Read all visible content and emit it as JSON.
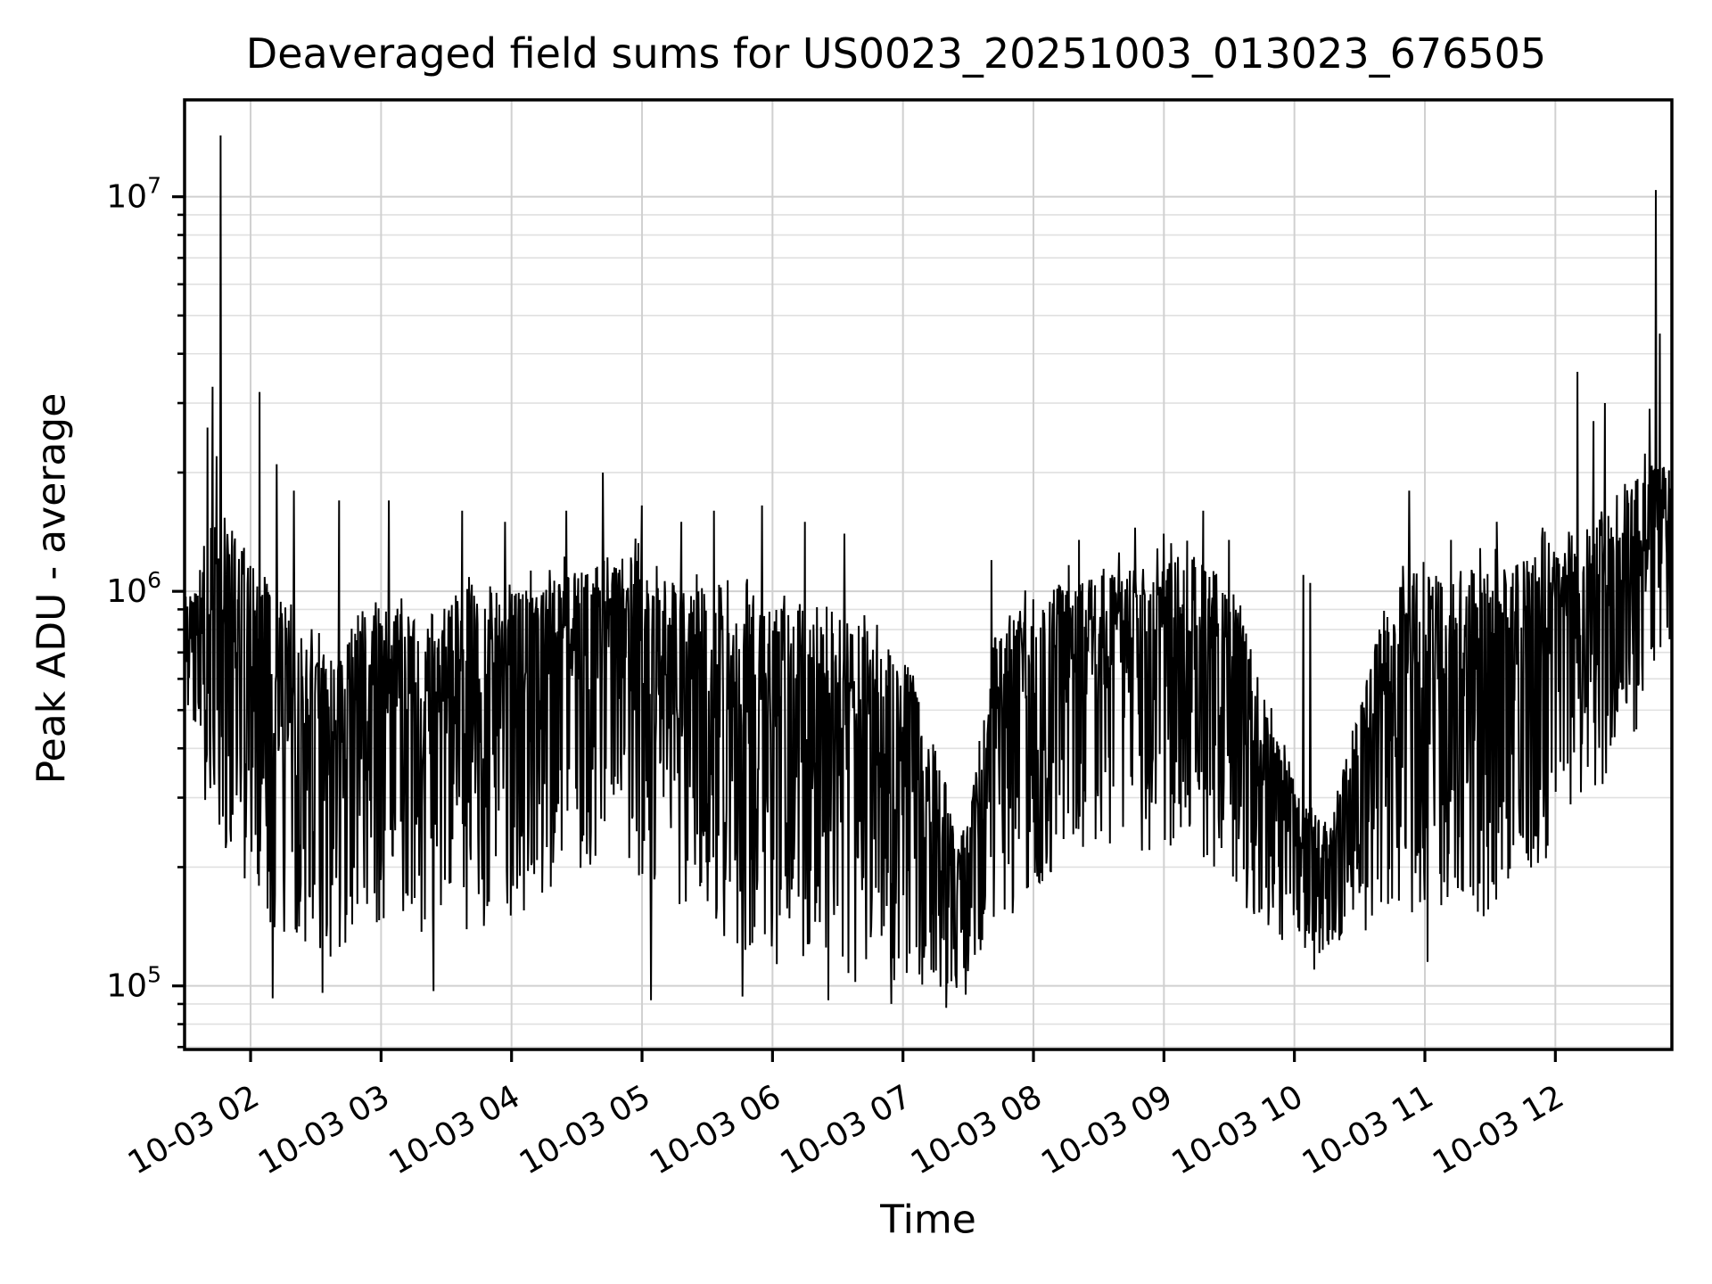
{
  "chart_data": {
    "type": "line",
    "title": "Deaveraged field sums for US0023_20251003_013023_676505",
    "xlabel": "Time",
    "ylabel": "Peak ADU - average",
    "line_color": "#000000",
    "background_color": "#ffffff",
    "grid": {
      "shown": true,
      "which": "both",
      "major_color": "#d0d0d0",
      "minor_color": "#e0e0e0"
    },
    "x_axis": {
      "tick_rotation_deg": 30,
      "ticks": [
        {
          "label": "10-03 02",
          "hour": 2
        },
        {
          "label": "10-03 03",
          "hour": 3
        },
        {
          "label": "10-03 04",
          "hour": 4
        },
        {
          "label": "10-03 05",
          "hour": 5
        },
        {
          "label": "10-03 06",
          "hour": 6
        },
        {
          "label": "10-03 07",
          "hour": 7
        },
        {
          "label": "10-03 08",
          "hour": 8
        },
        {
          "label": "10-03 09",
          "hour": 9
        },
        {
          "label": "10-03 10",
          "hour": 10
        },
        {
          "label": "10-03 11",
          "hour": 11
        },
        {
          "label": "10-03 12",
          "hour": 12
        }
      ]
    },
    "y_axis": {
      "scale": "log",
      "ticks": [
        {
          "base": "10",
          "exp": "5",
          "value": 100000.0
        },
        {
          "base": "10",
          "exp": "6",
          "value": 1000000.0
        },
        {
          "base": "10",
          "exp": "7",
          "value": 10000000.0
        }
      ]
    },
    "xlim_hours": [
      1.494,
      12.893
    ],
    "ylim": [
      69000.0,
      17600000.0
    ],
    "envelope_points": [
      [
        1.49,
        550000.0,
        950000.0
      ],
      [
        1.58,
        450000.0,
        1000000.0
      ],
      [
        1.66,
        280000.0,
        1500000.0
      ],
      [
        1.8,
        220000.0,
        1600000.0
      ],
      [
        1.95,
        180000.0,
        1300000.0
      ],
      [
        2.1,
        150000.0,
        1100000.0
      ],
      [
        2.25,
        120000.0,
        900000.0
      ],
      [
        2.45,
        110000.0,
        750000.0
      ],
      [
        2.65,
        120000.0,
        700000.0
      ],
      [
        2.85,
        140000.0,
        900000.0
      ],
      [
        3.1,
        150000.0,
        1000000.0
      ],
      [
        3.35,
        130000.0,
        850000.0
      ],
      [
        3.6,
        130000.0,
        1000000.0
      ],
      [
        3.85,
        140000.0,
        1100000.0
      ],
      [
        4.1,
        150000.0,
        1000000.0
      ],
      [
        4.35,
        180000.0,
        1100000.0
      ],
      [
        4.6,
        200000.0,
        1200000.0
      ],
      [
        4.85,
        200000.0,
        1250000.0
      ],
      [
        5.1,
        180000.0,
        1200000.0
      ],
      [
        5.35,
        150000.0,
        1050000.0
      ],
      [
        5.6,
        130000.0,
        950000.0
      ],
      [
        5.85,
        120000.0,
        1000000.0
      ],
      [
        6.1,
        110000.0,
        950000.0
      ],
      [
        6.35,
        105000.0,
        850000.0
      ],
      [
        6.6,
        100000.0,
        850000.0
      ],
      [
        6.85,
        100000.0,
        750000.0
      ],
      [
        7.05,
        100000.0,
        650000.0
      ],
      [
        7.25,
        95000.0,
        450000.0
      ],
      [
        7.42,
        95000.0,
        220000.0
      ],
      [
        7.55,
        110000.0,
        350000.0
      ],
      [
        7.7,
        130000.0,
        800000.0
      ],
      [
        7.95,
        170000.0,
        950000.0
      ],
      [
        8.2,
        200000.0,
        1050000.0
      ],
      [
        8.45,
        220000.0,
        1100000.0
      ],
      [
        8.7,
        220000.0,
        1150000.0
      ],
      [
        8.95,
        220000.0,
        1200000.0
      ],
      [
        9.2,
        220000.0,
        1250000.0
      ],
      [
        9.45,
        190000.0,
        1150000.0
      ],
      [
        9.65,
        150000.0,
        750000.0
      ],
      [
        9.85,
        130000.0,
        450000.0
      ],
      [
        10.05,
        120000.0,
        300000.0
      ],
      [
        10.25,
        120000.0,
        260000.0
      ],
      [
        10.45,
        130000.0,
        450000.0
      ],
      [
        10.65,
        140000.0,
        850000.0
      ],
      [
        10.85,
        150000.0,
        1150000.0
      ],
      [
        11.1,
        160000.0,
        1100000.0
      ],
      [
        11.35,
        150000.0,
        1150000.0
      ],
      [
        11.6,
        150000.0,
        1200000.0
      ],
      [
        11.85,
        180000.0,
        1250000.0
      ],
      [
        12.1,
        280000.0,
        1350000.0
      ],
      [
        12.35,
        320000.0,
        1600000.0
      ],
      [
        12.6,
        400000.0,
        1900000.0
      ],
      [
        12.75,
        550000.0,
        2200000.0
      ],
      [
        12.89,
        700000.0,
        2000000.0
      ]
    ],
    "spikes": [
      [
        1.67,
        2600000.0
      ],
      [
        1.71,
        3300000.0
      ],
      [
        1.74,
        2200000.0
      ],
      [
        1.77,
        14300000.0
      ],
      [
        2.07,
        3200000.0
      ],
      [
        2.2,
        2100000.0
      ],
      [
        2.33,
        1800000.0
      ],
      [
        2.68,
        1700000.0
      ],
      [
        3.06,
        1700000.0
      ],
      [
        3.62,
        1600000.0
      ],
      [
        3.95,
        1500000.0
      ],
      [
        4.42,
        1600000.0
      ],
      [
        4.7,
        2000000.0
      ],
      [
        5.0,
        1650000.0
      ],
      [
        5.3,
        1500000.0
      ],
      [
        5.55,
        1600000.0
      ],
      [
        5.92,
        1650000.0
      ],
      [
        6.25,
        1500000.0
      ],
      [
        6.55,
        1400000.0
      ],
      [
        7.68,
        1200000.0
      ],
      [
        8.35,
        1350000.0
      ],
      [
        8.78,
        1450000.0
      ],
      [
        9.0,
        1400000.0
      ],
      [
        9.3,
        1600000.0
      ],
      [
        9.5,
        1350000.0
      ],
      [
        10.07,
        1100000.0
      ],
      [
        10.12,
        1050000.0
      ],
      [
        10.88,
        1800000.0
      ],
      [
        11.2,
        1350000.0
      ],
      [
        11.55,
        1500000.0
      ],
      [
        11.9,
        1450000.0
      ],
      [
        12.17,
        3600000.0
      ],
      [
        12.29,
        2700000.0
      ],
      [
        12.38,
        3000000.0
      ],
      [
        12.72,
        2900000.0
      ],
      [
        12.77,
        10400000.0
      ],
      [
        12.8,
        4500000.0
      ]
    ],
    "dips": [
      [
        2.17,
        93000.0
      ],
      [
        2.55,
        96000.0
      ],
      [
        3.4,
        97000.0
      ],
      [
        5.07,
        92000.0
      ],
      [
        5.77,
        94000.0
      ],
      [
        6.43,
        92000.0
      ],
      [
        6.91,
        90000.0
      ],
      [
        7.33,
        88000.0
      ],
      [
        7.48,
        95000.0
      ],
      [
        10.15,
        110000.0
      ],
      [
        11.02,
        115000.0
      ]
    ]
  }
}
